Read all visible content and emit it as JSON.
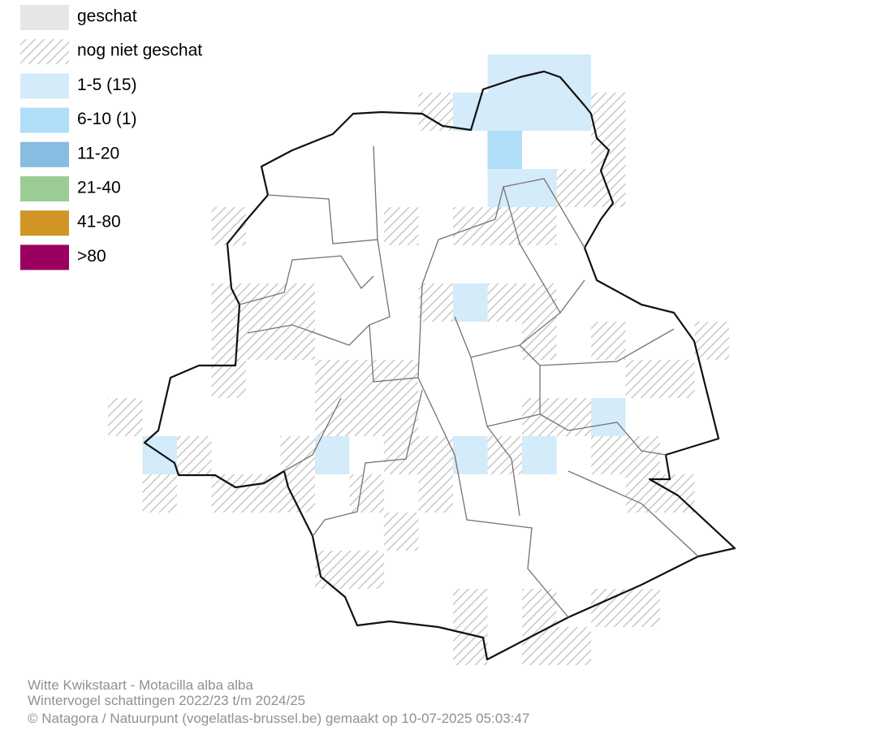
{
  "legend": [
    {
      "label": "geschat",
      "color": "#e6e6e6"
    },
    {
      "label": "nog niet geschat",
      "color": "#c8c8c8",
      "pattern": "hatch"
    },
    {
      "label": "1-5 (15)",
      "color": "#d4ebf9"
    },
    {
      "label": "6-10 (1)",
      "color": "#b0def8"
    },
    {
      "label": "11-20",
      "color": "#86bde0"
    },
    {
      "label": "21-40",
      "color": "#9ccc95"
    },
    {
      "label": "41-80",
      "color": "#d09524"
    },
    {
      "label": ">80",
      "color": "#9b0061"
    }
  ],
  "footer": {
    "species": "Witte Kwikstaart - Motacilla alba alba",
    "period": "Wintervogel schattingen 2022/23 t/m 2024/25",
    "credit": "© Natagora / Natuurpunt (vogelatlas-brussel.be) gemaakt op 10-07-2025 05:03:47"
  }
}
